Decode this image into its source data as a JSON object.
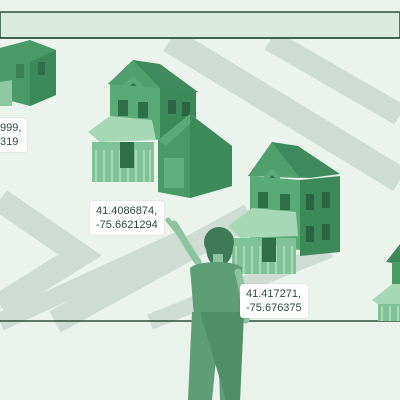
{
  "scene": {
    "colors": {
      "background": "#e9f3ec",
      "street": "#cfdcd3",
      "frame": "#2e4d3b",
      "house_light": "#5aaa78",
      "house_mid": "#4a9a68",
      "house_dark": "#3c8a5a",
      "house_roof": "#3f8a5c",
      "porch": "#a6d8b6",
      "person_dark": "#3f7a57",
      "person_mid": "#5d9e76",
      "person_light": "#8cc3a0"
    },
    "labels": [
      {
        "line1": "999,",
        "line2": "319"
      },
      {
        "line1": "41.4086874,",
        "line2": "-75.6621294"
      },
      {
        "line1": "41.417271,",
        "line2": "-75.676375"
      }
    ]
  }
}
